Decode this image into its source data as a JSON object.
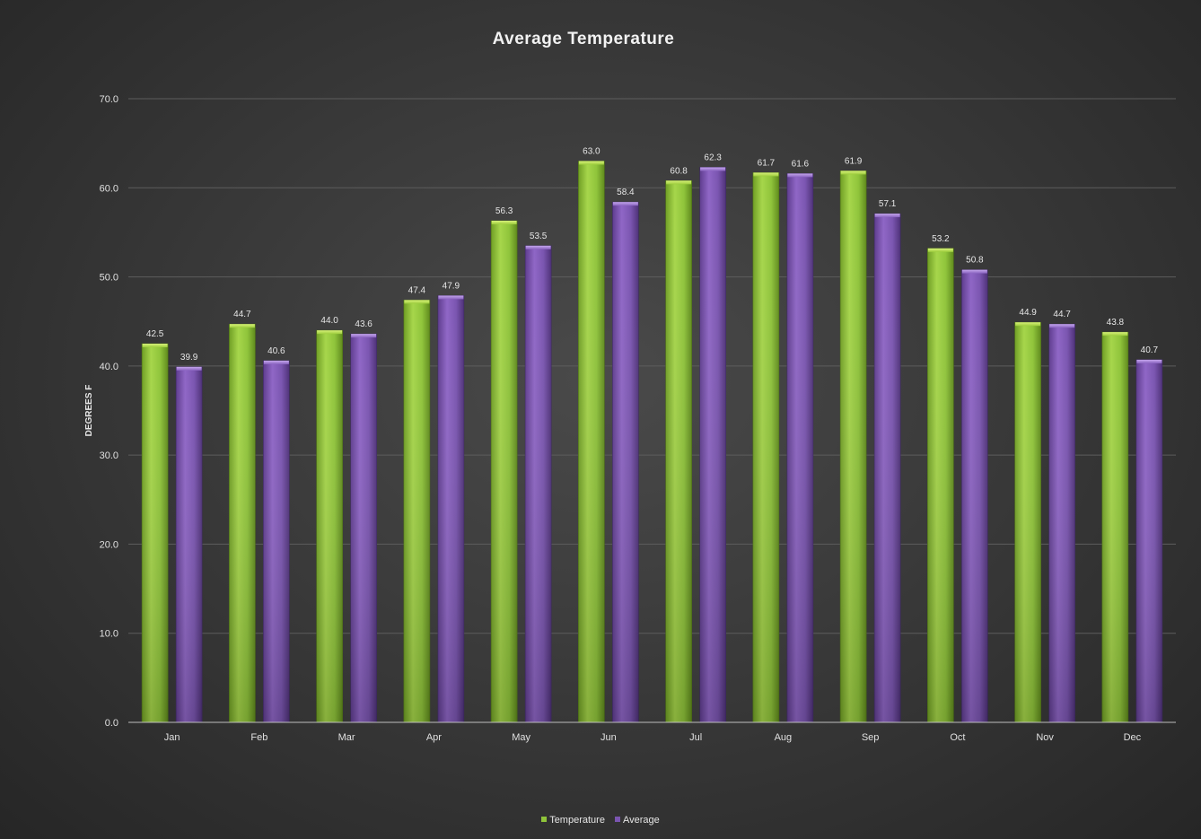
{
  "chart_data": {
    "type": "bar",
    "title": "Average Temperature",
    "xlabel": "",
    "ylabel": "DEGREES F",
    "ylim": [
      0,
      70
    ],
    "yticks": [
      "0.0",
      "10.0",
      "20.0",
      "30.0",
      "40.0",
      "50.0",
      "60.0",
      "70.0"
    ],
    "grid": true,
    "legend_position": "bottom",
    "categories": [
      "Jan",
      "Feb",
      "Mar",
      "Apr",
      "May",
      "Jun",
      "Jul",
      "Aug",
      "Sep",
      "Oct",
      "Nov",
      "Dec"
    ],
    "series": [
      {
        "name": "Temperature",
        "color": "#8fc43a",
        "values": [
          42.5,
          44.7,
          44.0,
          47.4,
          56.3,
          63.0,
          60.8,
          61.7,
          61.9,
          53.2,
          44.9,
          43.8
        ],
        "labels": [
          "42.5",
          "44.7",
          "44.0",
          "47.4",
          "56.3",
          "63.0",
          "60.8",
          "61.7",
          "61.9",
          "53.2",
          "44.9",
          "43.8"
        ]
      },
      {
        "name": "Average",
        "color": "#7a55b0",
        "values": [
          39.9,
          40.6,
          43.6,
          47.9,
          53.5,
          58.4,
          62.3,
          61.6,
          57.1,
          50.8,
          44.7,
          40.7
        ],
        "labels": [
          "39.9",
          "40.6",
          "43.6",
          "47.9",
          "53.5",
          "58.4",
          "62.3",
          "61.6",
          "57.1",
          "50.8",
          "44.7",
          "40.7"
        ]
      }
    ]
  }
}
